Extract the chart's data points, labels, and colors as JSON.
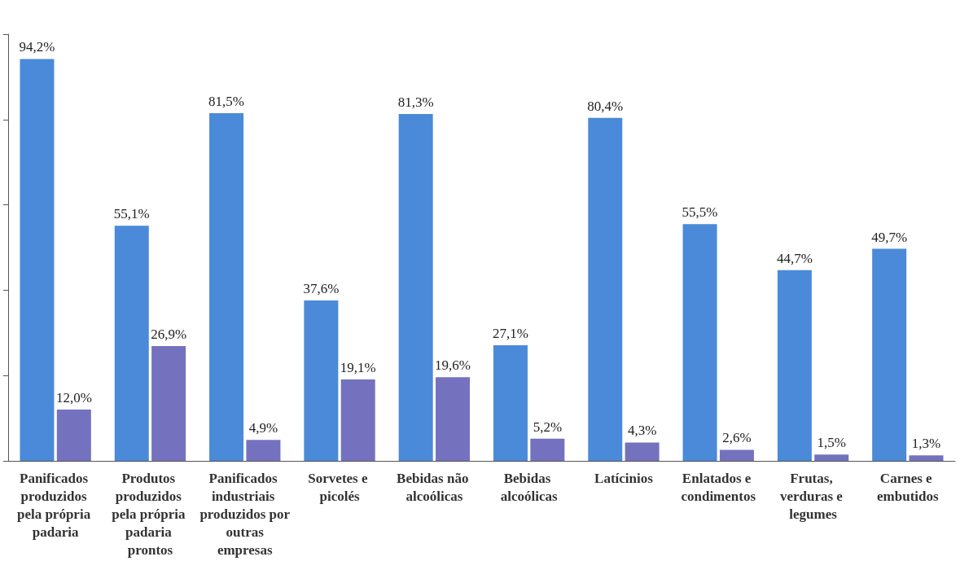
{
  "chart_data": {
    "type": "bar",
    "categories": [
      "Panificados produzidos pela própria padaria",
      "Produtos produzidos pela própria padaria prontos",
      "Panificados industriais produzidos por outras empresas",
      "Sorvetes e picolés",
      "Bebidas não alcoólicas",
      "Bebidas alcoólicas",
      "Latícinios",
      "Enlatados e condimentos",
      "Frutas, verduras e legumes",
      "Carnes e embutidos"
    ],
    "series": [
      {
        "color": "#4a8ad8",
        "values": [
          94.2,
          55.1,
          81.5,
          37.6,
          81.3,
          27.1,
          80.4,
          55.5,
          44.7,
          49.7
        ],
        "value_labels": [
          "94,2%",
          "55,1%",
          "81,5%",
          "37,6%",
          "81,3%",
          "27,1%",
          "80,4%",
          "55,5%",
          "44,7%",
          "49,7%"
        ]
      },
      {
        "color": "#7472bf",
        "values": [
          12.0,
          26.9,
          4.9,
          19.1,
          19.6,
          5.2,
          4.3,
          2.6,
          1.5,
          1.3
        ],
        "value_labels": [
          "12,0%",
          "26,9%",
          "4,9%",
          "19,1%",
          "19,6%",
          "5,2%",
          "4,3%",
          "2,6%",
          "1,5%",
          "1,3%"
        ]
      }
    ],
    "ylim": [
      0,
      100
    ],
    "yticks": [
      {
        "value": 0,
        "label": null
      },
      {
        "value": 20,
        "label": null
      },
      {
        "value": 40,
        "label": null
      },
      {
        "value": 60,
        "label": null
      },
      {
        "value": 80,
        "label": null
      },
      {
        "value": 100,
        "label": null
      }
    ],
    "tick_labels": "x"
  }
}
